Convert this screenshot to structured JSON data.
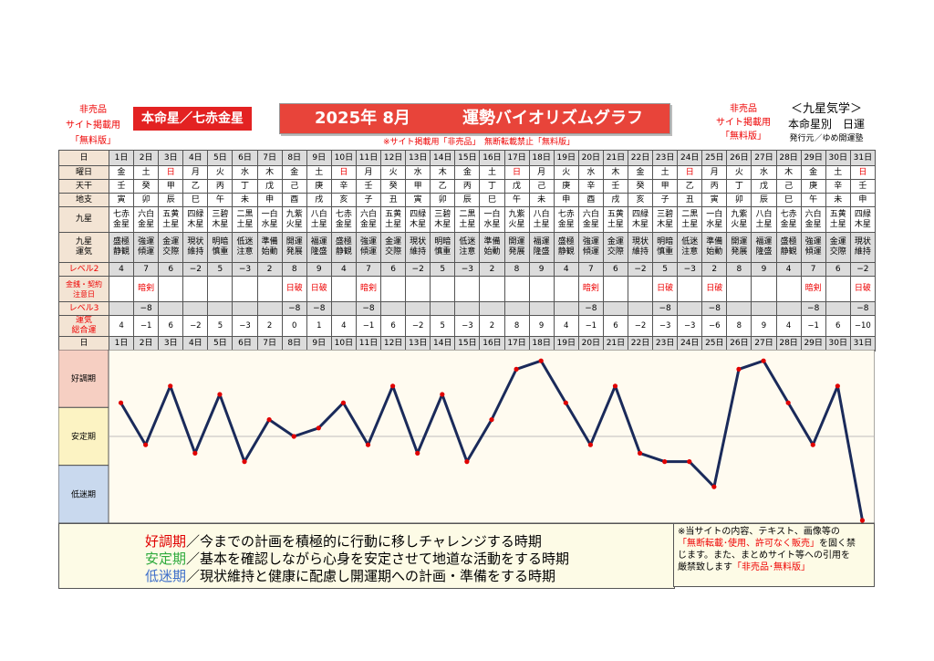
{
  "header": {
    "left_note_1": "非売品",
    "left_note_2": "サイト掲載用",
    "left_note_3": "「無料版」",
    "star_box": "本命星／七赤金星",
    "title_year_month": "2025年 8月",
    "title_main": "運勢バイオリズムグラフ",
    "right_note_1": "非売品",
    "right_note_2": "サイト掲載用",
    "right_note_3": "「無料版」",
    "right_title_1": "＜九星気学＞",
    "right_title_2": "本命星別　日運",
    "publisher": "発行元／ゆめ開運塾",
    "warning": "※サイト掲載用「非売品」　無断転載禁止「無料版」"
  },
  "row_labels": {
    "date": "日",
    "weekday": "曜日",
    "tenkan": "天干",
    "chishi": "地支",
    "kyusei": "九星",
    "kyusei_unki": "九星\n運気",
    "level2": "レベル2",
    "money": "金銭・契約\n注意日",
    "level3": "レベル3",
    "unki_total": "運気\n総合運"
  },
  "days": [
    "1日",
    "2日",
    "3日",
    "4日",
    "5日",
    "6日",
    "7日",
    "8日",
    "9日",
    "10日",
    "11日",
    "12日",
    "13日",
    "14日",
    "15日",
    "16日",
    "17日",
    "18日",
    "19日",
    "20日",
    "21日",
    "22日",
    "23日",
    "24日",
    "25日",
    "26日",
    "27日",
    "28日",
    "29日",
    "30日",
    "31日"
  ],
  "weekdays": [
    "金",
    "土",
    "日",
    "月",
    "火",
    "水",
    "木",
    "金",
    "土",
    "日",
    "月",
    "火",
    "水",
    "木",
    "金",
    "土",
    "日",
    "月",
    "火",
    "水",
    "木",
    "金",
    "土",
    "日",
    "月",
    "火",
    "水",
    "木",
    "金",
    "土",
    "日"
  ],
  "tenkan": [
    "壬",
    "癸",
    "甲",
    "乙",
    "丙",
    "丁",
    "戊",
    "己",
    "庚",
    "辛",
    "壬",
    "癸",
    "甲",
    "乙",
    "丙",
    "丁",
    "戊",
    "己",
    "庚",
    "辛",
    "壬",
    "癸",
    "甲",
    "乙",
    "丙",
    "丁",
    "戊",
    "己",
    "庚",
    "辛",
    "壬"
  ],
  "chishi": [
    "寅",
    "卯",
    "辰",
    "巳",
    "午",
    "未",
    "申",
    "酉",
    "戌",
    "亥",
    "子",
    "丑",
    "寅",
    "卯",
    "辰",
    "巳",
    "午",
    "未",
    "申",
    "酉",
    "戌",
    "亥",
    "子",
    "丑",
    "寅",
    "卯",
    "辰",
    "巳",
    "午",
    "未",
    "申"
  ],
  "kyusei": [
    "七赤\n金星",
    "六白\n金星",
    "五黄\n土星",
    "四緑\n木星",
    "三碧\n木星",
    "二黒\n土星",
    "一白\n水星",
    "九紫\n火星",
    "八白\n土星",
    "七赤\n金星",
    "六白\n金星",
    "五黄\n土星",
    "四緑\n木星",
    "三碧\n木星",
    "二黒\n土星",
    "一白\n水星",
    "九紫\n火星",
    "八白\n土星",
    "七赤\n金星",
    "六白\n金星",
    "五黄\n土星",
    "四緑\n木星",
    "三碧\n木星",
    "二黒\n土星",
    "一白\n水星",
    "九紫\n火星",
    "八白\n土星",
    "七赤\n金星",
    "六白\n金星",
    "五黄\n土星",
    "四緑\n木星"
  ],
  "kyusei_unki": [
    "盛極\n静観",
    "強運\n傾運",
    "金運\n交際",
    "現状\n維持",
    "明暗\n慎重",
    "低迷\n注意",
    "準備\n始動",
    "開運\n発展",
    "福運\n隆盛",
    "盛極\n静観",
    "強運\n傾運",
    "金運\n交際",
    "現状\n維持",
    "明暗\n慎重",
    "低迷\n注意",
    "準備\n始動",
    "開運\n発展",
    "福運\n隆盛",
    "盛極\n静観",
    "強運\n傾運",
    "金運\n交際",
    "現状\n維持",
    "明暗\n慎重",
    "低迷\n注意",
    "準備\n始動",
    "開運\n発展",
    "福運\n隆盛",
    "盛極\n静観",
    "強運\n傾運",
    "金運\n交際",
    "現状\n維持"
  ],
  "level2": [
    "4",
    "7",
    "6",
    "−2",
    "5",
    "−3",
    "2",
    "8",
    "9",
    "4",
    "7",
    "6",
    "−2",
    "5",
    "−3",
    "2",
    "8",
    "9",
    "4",
    "7",
    "6",
    "−2",
    "5",
    "−3",
    "2",
    "8",
    "9",
    "4",
    "7",
    "6",
    "−2"
  ],
  "money": [
    "",
    "暗剣",
    "",
    "",
    "",
    "",
    "",
    "日破",
    "日破",
    "",
    "暗剣",
    "",
    "",
    "",
    "",
    "",
    "",
    "",
    "",
    "暗剣",
    "",
    "",
    "日破",
    "",
    "日破",
    "",
    "",
    "",
    "暗剣",
    "",
    "日破"
  ],
  "level3": [
    "",
    "−8",
    "",
    "",
    "",
    "",
    "",
    "−8",
    "−8",
    "",
    "−8",
    "",
    "",
    "",
    "",
    "",
    "",
    "",
    "",
    "−8",
    "",
    "",
    "−8",
    "",
    "−8",
    "",
    "",
    "",
    "−8",
    "",
    "−8"
  ],
  "total": [
    "4",
    "−1",
    "6",
    "−2",
    "5",
    "−3",
    "2",
    "0",
    "1",
    "4",
    "−1",
    "6",
    "−2",
    "5",
    "−3",
    "2",
    "8",
    "9",
    "4",
    "−1",
    "6",
    "−2",
    "−3",
    "−3",
    "−6",
    "8",
    "9",
    "4",
    "−1",
    "6",
    "−10"
  ],
  "chart_data": {
    "type": "line",
    "x": [
      "1日",
      "2日",
      "3日",
      "4日",
      "5日",
      "6日",
      "7日",
      "8日",
      "9日",
      "10日",
      "11日",
      "12日",
      "13日",
      "14日",
      "15日",
      "16日",
      "17日",
      "18日",
      "19日",
      "20日",
      "21日",
      "22日",
      "23日",
      "24日",
      "25日",
      "26日",
      "27日",
      "28日",
      "29日",
      "30日",
      "31日"
    ],
    "values": [
      4,
      -1,
      6,
      -2,
      5,
      -3,
      2,
      0,
      1,
      4,
      -1,
      6,
      -2,
      5,
      -3,
      2,
      8,
      9,
      4,
      -1,
      6,
      -2,
      -3,
      -3,
      -6,
      8,
      9,
      4,
      -1,
      6,
      -10
    ],
    "ylim": [
      -10,
      10
    ],
    "bands": [
      "好調期",
      "安定期",
      "低迷期"
    ],
    "band_colors": [
      "#f6cfc2",
      "#fcf3c3",
      "#c9d9ee"
    ],
    "line_color": "#1a2a5a",
    "marker_color": "#e00000"
  },
  "legend": {
    "good_head": "好調期",
    "good_text": "／今までの計画を積極的に行動に移しチャレンジする時期",
    "stable_head": "安定期",
    "stable_text": "／基本を確認しながら心身を安定させて地道な活動をする時期",
    "low_head": "低迷期",
    "low_text": "／現状維持と健康に配慮し開運期への計画・準備をする時期",
    "good_color": "#e00000",
    "stable_color": "#2eaa3c",
    "low_color": "#3d6ec9"
  },
  "note": {
    "l1": "※当サイトの内容、テキスト、画像等の",
    "l2": "「無断転載･使用、許可なく販売」",
    "l2b": "を固く禁",
    "l3": "じます。また、まとめサイト等への引用を",
    "l4": "厳禁致します",
    "l4b": "「非売品･無料版」"
  }
}
